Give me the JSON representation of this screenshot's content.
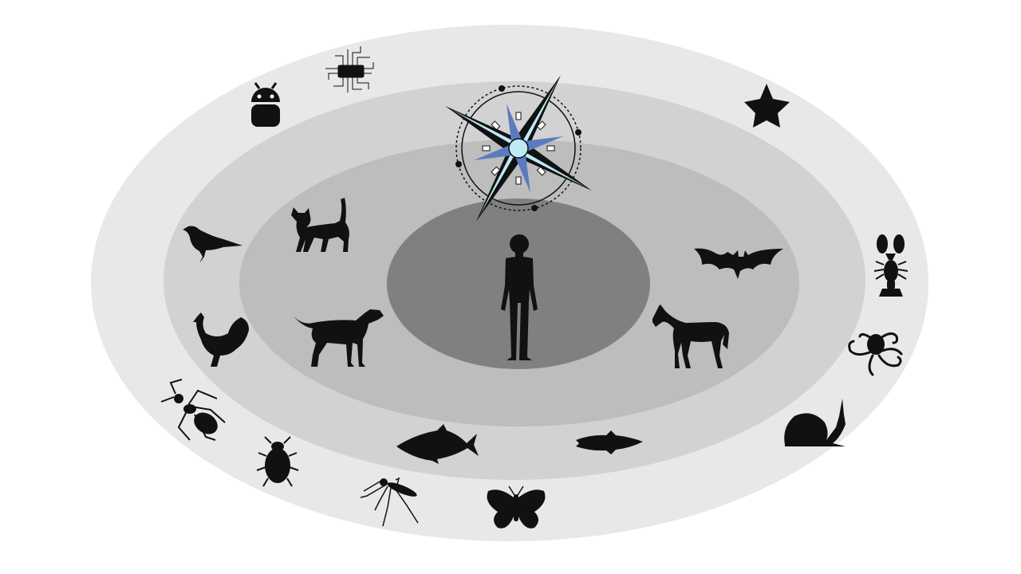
{
  "diagram": {
    "type": "concentric-circles-of-moral-concern",
    "center": {
      "icon": "human-silhouette-icon"
    },
    "rings": [
      {
        "level": 1,
        "color": "#808080",
        "members": [
          "human-silhouette-icon"
        ]
      },
      {
        "level": 2,
        "color": "#bdbdbd",
        "members": [
          "cat-icon",
          "dog-icon",
          "bat-icon",
          "horse-icon"
        ]
      },
      {
        "level": 3,
        "color": "#d2d2d2",
        "members": [
          "bird-icon",
          "rooster-icon",
          "tuna-icon",
          "trout-icon"
        ]
      },
      {
        "level": 4,
        "color": "#e8e8e8",
        "members": [
          "android-robot-icon",
          "microchip-icon",
          "star-icon",
          "lobster-icon",
          "octopus-icon",
          "snail-icon",
          "ant-icon",
          "beetle-icon",
          "mosquito-icon",
          "butterfly-icon"
        ]
      }
    ],
    "overlay": {
      "icon": "compass-rose-icon",
      "colors": {
        "outer": "#000000",
        "inner": "#5a7bbf",
        "light": "#bfe9f5"
      }
    }
  }
}
